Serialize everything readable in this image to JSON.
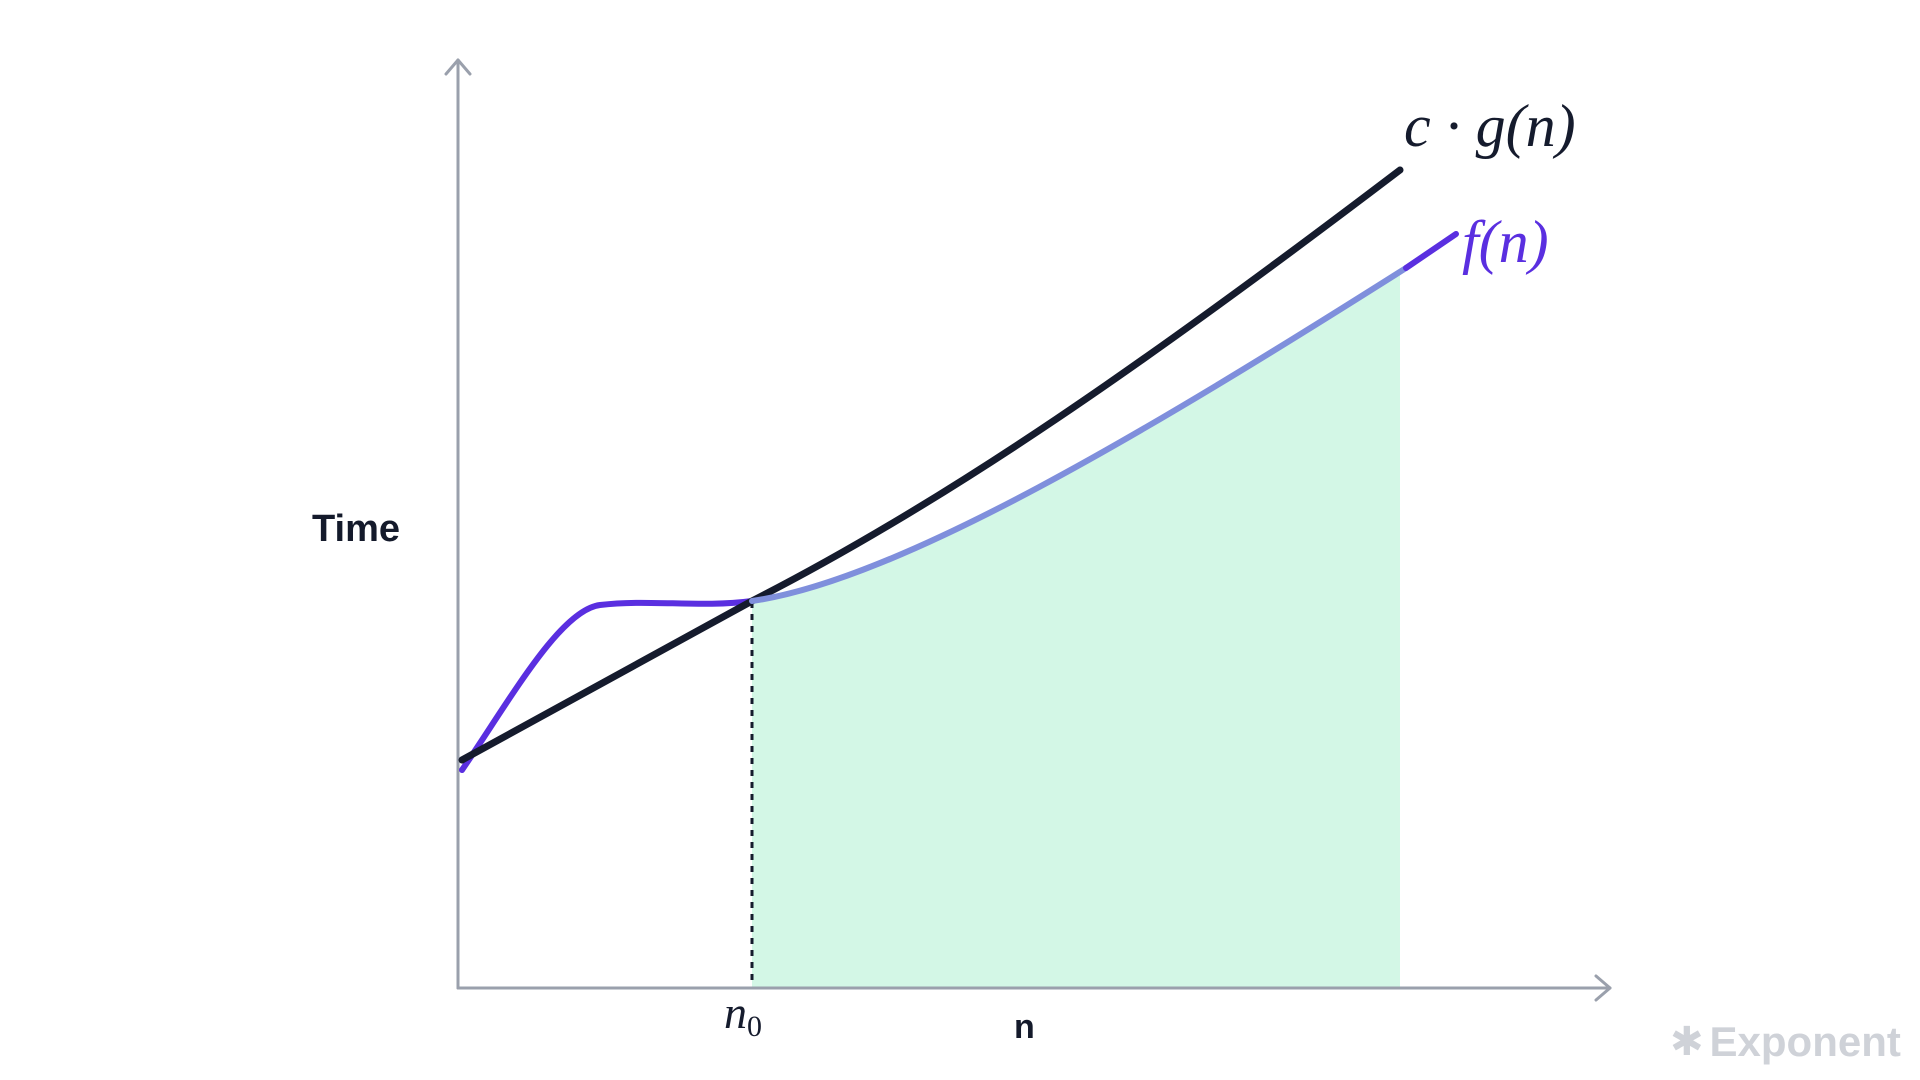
{
  "axes": {
    "y_label": "Time",
    "x_label": "n"
  },
  "curves": [
    {
      "name": "c · g(n)",
      "color": "#151b2d",
      "role": "upper bound"
    },
    {
      "name": "f(n)",
      "color": "#5a2fe0",
      "faded_color": "#7f8fdc",
      "role": "function"
    }
  ],
  "threshold": {
    "label_main": "n",
    "label_sub": "0",
    "line_style": "dotted"
  },
  "region": {
    "color": "#d3f7e6",
    "meaning": "n >= n0 where f(n) <= c·g(n)"
  },
  "colors": {
    "axis": "#9aa0ac",
    "background": "#ffffff"
  },
  "brand": {
    "icon": "asterisk-icon",
    "icon_glyph": "✱",
    "name": "Exponent"
  }
}
